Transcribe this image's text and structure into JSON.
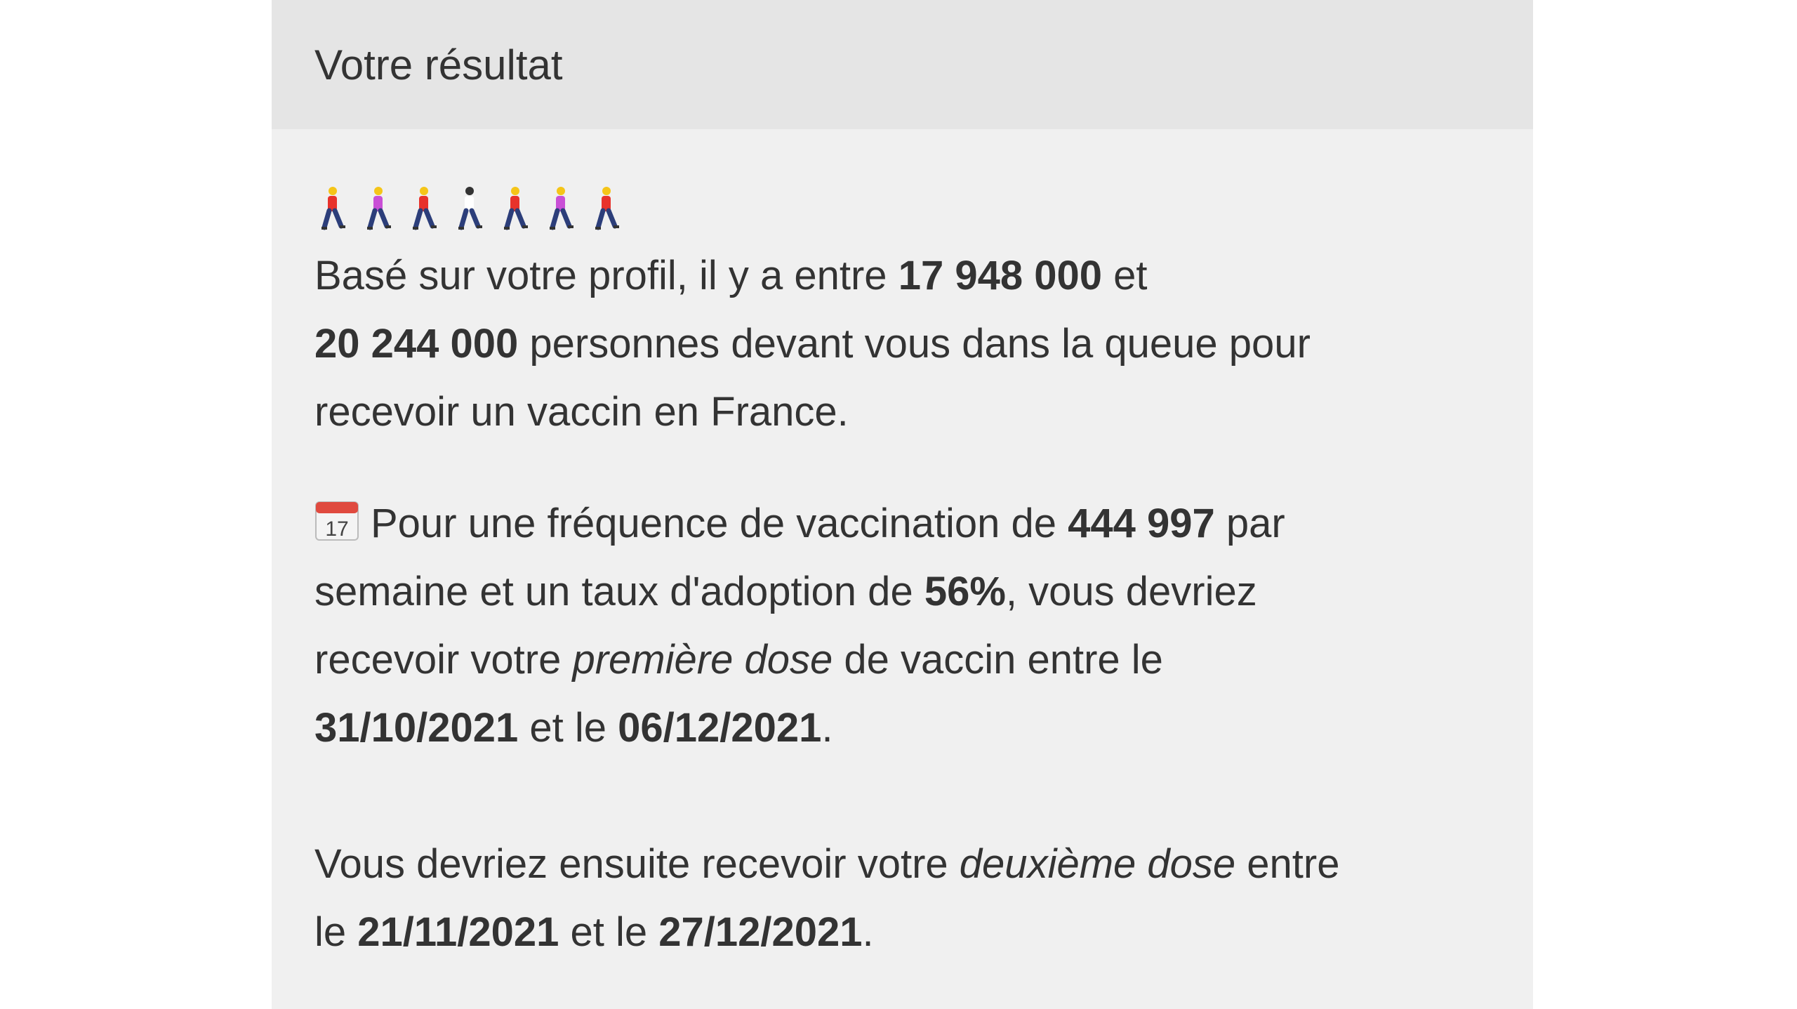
{
  "header": {
    "title": "Votre résultat"
  },
  "people_icons": [
    {
      "name": "person-walking-icon",
      "hair": "#f5c518",
      "shirt": "#e8322b"
    },
    {
      "name": "woman-walking-icon",
      "hair": "#f5c518",
      "shirt": "#c94fd6"
    },
    {
      "name": "person-walking-icon",
      "hair": "#f5c518",
      "shirt": "#e8322b"
    },
    {
      "name": "man-walking-icon",
      "hair": "#333333",
      "shirt": "#ffffff"
    },
    {
      "name": "person-walking-icon",
      "hair": "#f5c518",
      "shirt": "#e8322b"
    },
    {
      "name": "woman-walking-icon",
      "hair": "#f5c518",
      "shirt": "#c94fd6"
    },
    {
      "name": "person-walking-icon",
      "hair": "#f5c518",
      "shirt": "#e8322b"
    }
  ],
  "queue": {
    "t1": "Basé sur votre profil, il y a entre ",
    "min": "17 948 000",
    "t2": " et",
    "max": "20 244 000",
    "t3": " personnes devant vous dans la queue pour",
    "t4": "recevoir un vaccin en France."
  },
  "schedule": {
    "icon": "calendar-icon",
    "t1": "Pour une fréquence de vaccination de ",
    "rate": "444 997",
    "t2": " par",
    "t3": "semaine et un taux d'adoption de ",
    "adoption": "56%",
    "t4": ", vous devriez",
    "t5": "recevoir votre ",
    "first_dose": "première dose",
    "t6": " de vaccin entre le",
    "first_start": "31/10/2021",
    "t7": " et le ",
    "first_end": "06/12/2021",
    "t8": ".",
    "t9": "Vous devriez ensuite recevoir votre ",
    "second_dose": "deuxième dose",
    "t10": " entre",
    "t11": "le ",
    "second_start": "21/11/2021",
    "t12": " et le ",
    "second_end": "27/12/2021",
    "t13": "."
  }
}
